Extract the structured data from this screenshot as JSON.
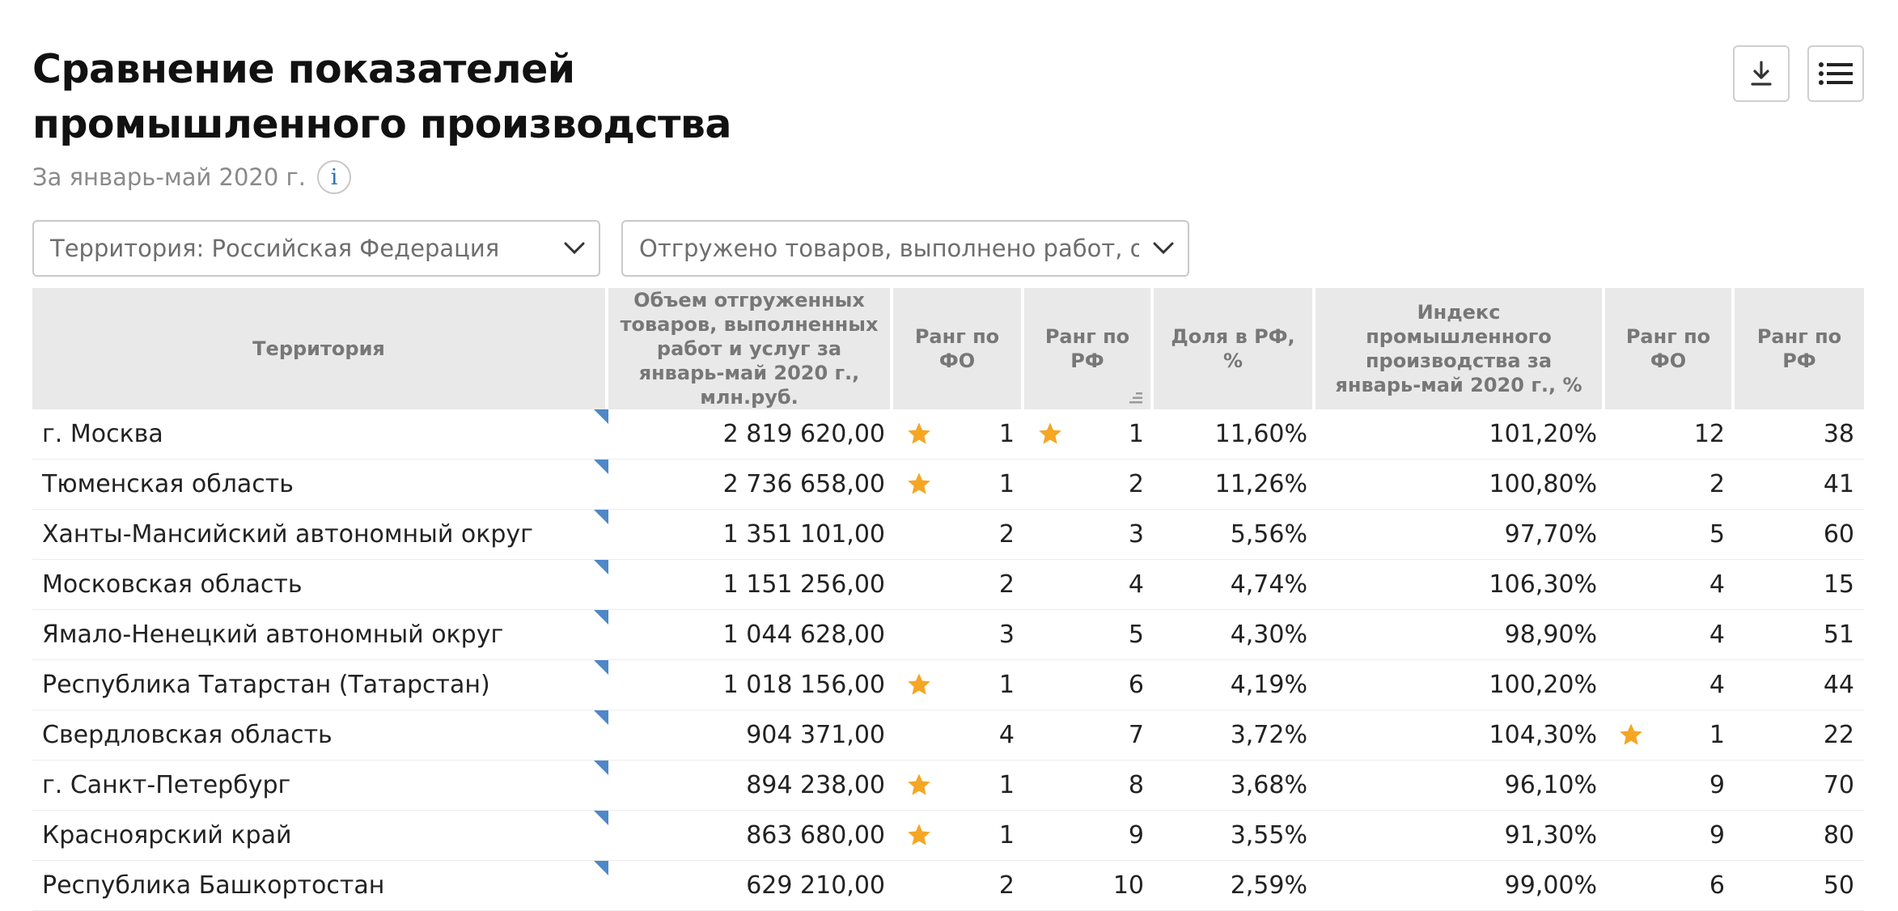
{
  "header": {
    "title": "Сравнение показателей промышленного производства",
    "subtitle": "За январь-май 2020 г.",
    "info_icon": "i"
  },
  "toolbar": {
    "download_icon": "download-icon",
    "menu_icon": "list-icon"
  },
  "filters": {
    "territory": "Территория: Российская  Федерация",
    "indicator": "Отгружено товаров, выполнено работ, оказ"
  },
  "table": {
    "columns": [
      "Территория",
      "Объем отгруженных товаров, выполненных работ и услуг за январь-май 2020 г., млн.руб.",
      "Ранг по ФО",
      "Ранг по РФ",
      "Доля в РФ, %",
      "Индекс промышленного производства за январь-май 2020 г., %",
      "Ранг по ФО",
      "Ранг по РФ"
    ],
    "rows": [
      {
        "name": "г. Москва",
        "volume": "2 819 620,00",
        "rank_fo": "1",
        "star_fo": true,
        "rank_rf": "1",
        "star_rf": true,
        "share": "11,60%",
        "index": "101,20%",
        "rank2_fo": "12",
        "star2_fo": false,
        "rank2_rf": "38"
      },
      {
        "name": "Тюменская область",
        "volume": "2 736 658,00",
        "rank_fo": "1",
        "star_fo": true,
        "rank_rf": "2",
        "star_rf": false,
        "share": "11,26%",
        "index": "100,80%",
        "rank2_fo": "2",
        "star2_fo": false,
        "rank2_rf": "41"
      },
      {
        "name": "Ханты-Мансийский автономный округ",
        "volume": "1 351 101,00",
        "rank_fo": "2",
        "star_fo": false,
        "rank_rf": "3",
        "star_rf": false,
        "share": "5,56%",
        "index": "97,70%",
        "rank2_fo": "5",
        "star2_fo": false,
        "rank2_rf": "60"
      },
      {
        "name": "Московская область",
        "volume": "1 151 256,00",
        "rank_fo": "2",
        "star_fo": false,
        "rank_rf": "4",
        "star_rf": false,
        "share": "4,74%",
        "index": "106,30%",
        "rank2_fo": "4",
        "star2_fo": false,
        "rank2_rf": "15"
      },
      {
        "name": "Ямало-Ненецкий автономный округ",
        "volume": "1 044 628,00",
        "rank_fo": "3",
        "star_fo": false,
        "rank_rf": "5",
        "star_rf": false,
        "share": "4,30%",
        "index": "98,90%",
        "rank2_fo": "4",
        "star2_fo": false,
        "rank2_rf": "51"
      },
      {
        "name": "Республика Татарстан (Татарстан)",
        "volume": "1 018 156,00",
        "rank_fo": "1",
        "star_fo": true,
        "rank_rf": "6",
        "star_rf": false,
        "share": "4,19%",
        "index": "100,20%",
        "rank2_fo": "4",
        "star2_fo": false,
        "rank2_rf": "44"
      },
      {
        "name": "Свердловская область",
        "volume": "904 371,00",
        "rank_fo": "4",
        "star_fo": false,
        "rank_rf": "7",
        "star_rf": false,
        "share": "3,72%",
        "index": "104,30%",
        "rank2_fo": "1",
        "star2_fo": true,
        "rank2_rf": "22"
      },
      {
        "name": "г. Санкт-Петербург",
        "volume": "894 238,00",
        "rank_fo": "1",
        "star_fo": true,
        "rank_rf": "8",
        "star_rf": false,
        "share": "3,68%",
        "index": "96,10%",
        "rank2_fo": "9",
        "star2_fo": false,
        "rank2_rf": "70"
      },
      {
        "name": "Красноярский край",
        "volume": "863 680,00",
        "rank_fo": "1",
        "star_fo": true,
        "rank_rf": "9",
        "star_rf": false,
        "share": "3,55%",
        "index": "91,30%",
        "rank2_fo": "9",
        "star2_fo": false,
        "rank2_rf": "80"
      },
      {
        "name": "Республика Башкортостан",
        "volume": "629 210,00",
        "rank_fo": "2",
        "star_fo": false,
        "rank_rf": "10",
        "star_rf": false,
        "share": "2,59%",
        "index": "99,00%",
        "rank2_fo": "6",
        "star2_fo": false,
        "rank2_rf": "50"
      }
    ]
  },
  "colors": {
    "star": "#f5a623",
    "corner_marker": "#4f87c8",
    "header_bg": "#e9e9e9"
  }
}
